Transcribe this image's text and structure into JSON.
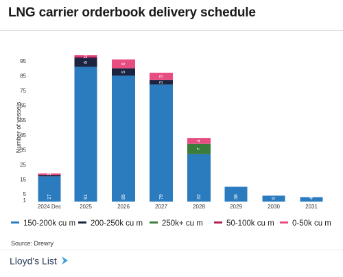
{
  "header": {
    "title": "LNG carrier orderbook delivery schedule"
  },
  "footer": {
    "source": "Source: Drewry",
    "brand": "Lloyd's List"
  },
  "chart_data": {
    "type": "bar",
    "stacked": true,
    "title": "LNG carrier orderbook delivery schedule",
    "xlabel": "",
    "ylabel": "Number of vessels",
    "ylim": [
      0,
      100
    ],
    "y_ticks": [
      1,
      5,
      15,
      25,
      35,
      45,
      55,
      65,
      75,
      85,
      95
    ],
    "categories": [
      "2024 Dec",
      "2025",
      "2026",
      "2027",
      "2028",
      "2029",
      "2030",
      "2031"
    ],
    "grid": false,
    "legend_position": "bottom",
    "series": [
      {
        "name": "150-200k cu m",
        "color": "#2b7bbf",
        "values": [
          17,
          91,
          85,
          79,
          32,
          38,
          6,
          4
        ]
      },
      {
        "name": "200-250k cu m",
        "color": "#1b2440",
        "values": [
          1,
          6,
          5,
          3,
          0,
          0,
          0,
          0
        ]
      },
      {
        "name": "250k+ cu m",
        "color": "#3a7d3a",
        "values": [
          0,
          0,
          0,
          0,
          7,
          0,
          0,
          0
        ]
      },
      {
        "name": "50-100k cu m",
        "color": "#b51e55",
        "values": [
          0,
          1,
          0,
          0,
          0,
          0,
          0,
          0
        ]
      },
      {
        "name": "0-50k cu m",
        "color": "#e84d82",
        "values": [
          1,
          1,
          6,
          5,
          4,
          0,
          0,
          0
        ]
      }
    ],
    "display_values": [
      {
        "category": "2024 Dec",
        "series": "150-200k cu m",
        "label": "17"
      },
      {
        "category": "2024 Dec",
        "series": "0-50k cu m",
        "label": "1"
      },
      {
        "category": "2025",
        "series": "150-200k cu m",
        "label": "91"
      },
      {
        "category": "2025",
        "series": "200-250k cu m",
        "label": "6"
      },
      {
        "category": "2025",
        "series": "50-100k cu m",
        "label": "1"
      },
      {
        "category": "2025",
        "series": "0-50k cu m",
        "label": "1"
      },
      {
        "category": "2026",
        "series": "150-200k cu m",
        "label": "85"
      },
      {
        "category": "2026",
        "series": "200-250k cu m",
        "label": "5"
      },
      {
        "category": "2026",
        "series": "0-50k cu m",
        "label": "6"
      },
      {
        "category": "2027",
        "series": "150-200k cu m",
        "label": "79"
      },
      {
        "category": "2027",
        "series": "200-250k cu m",
        "label": "3"
      },
      {
        "category": "2027",
        "series": "0-50k cu m",
        "label": "5"
      },
      {
        "category": "2028",
        "series": "150-200k cu m",
        "label": "32"
      },
      {
        "category": "2028",
        "series": "250k+ cu m",
        "label": "7"
      },
      {
        "category": "2028",
        "series": "0-50k cu m",
        "label": "4"
      },
      {
        "category": "2029",
        "series": "150-200k cu m",
        "label": "38"
      },
      {
        "category": "2030",
        "series": "150-200k cu m",
        "label": "6"
      },
      {
        "category": "2031",
        "series": "150-200k cu m",
        "label": "4"
      }
    ],
    "notes": "Bars for 2029-2031 are drawn with apparent heights of about 10, 4 and 3 vessels despite their printed labels."
  }
}
